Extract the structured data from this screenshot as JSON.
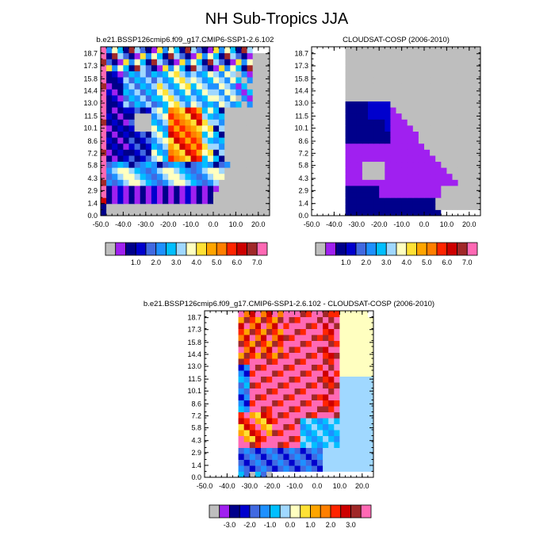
{
  "title": "NH Sub-Tropics JJA",
  "colors": {
    "missing": "#bebebe",
    "scale": [
      "#a020f0",
      "#00008b",
      "#0000cd",
      "#4169e1",
      "#1e90ff",
      "#00bfff",
      "#a0d8ff",
      "#ffffc0",
      "#ffe135",
      "#ffa500",
      "#ff7f00",
      "#ff2500",
      "#cd0000",
      "#a02828",
      "#ff69b4"
    ]
  },
  "chart_data": [
    {
      "type": "heatmap",
      "title": "b.e21.BSSP126cmip6.f09_g17.CMIP6-SSP1-2.6.102",
      "xticks": [
        "-50.0",
        "-40.0",
        "-30.0",
        "-20.0",
        "-10.0",
        "0.0",
        "10.0",
        "20.0"
      ],
      "xlim": [
        -50,
        25
      ],
      "yticks": [
        "0.0",
        "1.4",
        "2.9",
        "4.3",
        "5.8",
        "7.2",
        "8.6",
        "10.1",
        "11.5",
        "13.0",
        "14.4",
        "15.8",
        "17.3",
        "18.7"
      ],
      "ylim": [
        0,
        19.5
      ],
      "colorbar": {
        "labels": [
          "1.0",
          "2.0",
          "3.0",
          "4.0",
          "5.0",
          "6.0",
          "7.0"
        ]
      }
    },
    {
      "type": "heatmap",
      "title": "CLOUDSAT-COSP (2006-2010)",
      "xticks": [
        "-50.0",
        "-40.0",
        "-30.0",
        "-20.0",
        "-10.0",
        "0.0",
        "10.0",
        "20.0"
      ],
      "xlim": [
        -50,
        25
      ],
      "yticks": [
        "0.0",
        "1.4",
        "2.9",
        "4.3",
        "5.8",
        "7.2",
        "8.6",
        "10.1",
        "11.5",
        "13.0",
        "14.4",
        "15.8",
        "17.3",
        "18.7"
      ],
      "ylim": [
        0,
        19.5
      ],
      "colorbar": {
        "labels": [
          "1.0",
          "2.0",
          "3.0",
          "4.0",
          "5.0",
          "6.0",
          "7.0"
        ]
      }
    },
    {
      "type": "heatmap",
      "title": "b.e21.BSSP126cmip6.f09_g17.CMIP6-SSP1-2.6.102 - CLOUDSAT-COSP (2006-2010)",
      "xticks": [
        "-50.0",
        "-40.0",
        "-30.0",
        "-20.0",
        "-10.0",
        "0.0",
        "10.0",
        "20.0"
      ],
      "xlim": [
        -50,
        25
      ],
      "yticks": [
        "0.0",
        "1.4",
        "2.9",
        "4.3",
        "5.8",
        "7.2",
        "8.6",
        "10.1",
        "11.5",
        "13.0",
        "14.4",
        "15.8",
        "17.3",
        "18.7"
      ],
      "ylim": [
        0,
        19.5
      ],
      "colorbar": {
        "labels": [
          "-3.0",
          "-2.0",
          "-1.0",
          "0.0",
          "1.0",
          "2.0",
          "3.0"
        ]
      }
    }
  ]
}
